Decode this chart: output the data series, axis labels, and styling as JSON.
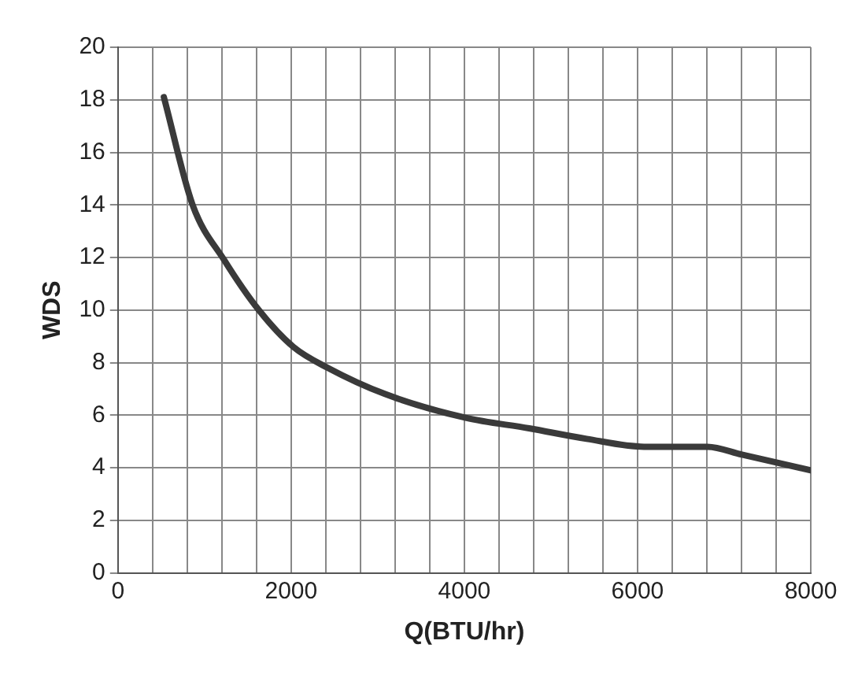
{
  "chart_data": {
    "type": "line",
    "xlabel": "Q(BTU/hr)",
    "ylabel": "WDS",
    "x": [
      531,
      863,
      1228,
      1627,
      2025,
      2424,
      3088,
      4017,
      4748,
      5412,
      6076,
      6807,
      7205,
      8000
    ],
    "series": [
      {
        "color": "#3a3a3a",
        "values": [
          18.1,
          14.0,
          11.9,
          10.0,
          8.6,
          7.8,
          6.8,
          5.9,
          5.5,
          5.1,
          4.8,
          4.8,
          4.5,
          3.9
        ]
      }
    ],
    "xlim": [
      0,
      8000
    ],
    "xticks": [
      0,
      {
        "value": 400,
        "label": null
      },
      {
        "value": 800,
        "label": null
      },
      {
        "value": 1200,
        "label": null
      },
      {
        "value": 1600,
        "label": null
      },
      2000,
      {
        "value": 2400,
        "label": null
      },
      {
        "value": 2800,
        "label": null
      },
      {
        "value": 3200,
        "label": null
      },
      {
        "value": 3600,
        "label": null
      },
      4000,
      {
        "value": 4400,
        "label": null
      },
      {
        "value": 4800,
        "label": null
      },
      {
        "value": 5200,
        "label": null
      },
      {
        "value": 5600,
        "label": null
      },
      6000,
      {
        "value": 6400,
        "label": null
      },
      {
        "value": 6800,
        "label": null
      },
      {
        "value": 7200,
        "label": null
      },
      {
        "value": 7600,
        "label": null
      },
      8000
    ],
    "ylim": [
      0,
      20
    ],
    "yticks": [
      0,
      2,
      4,
      6,
      8,
      10,
      12,
      14,
      16,
      18,
      20
    ],
    "grid": true,
    "legend": false,
    "marker": "none",
    "line_style": "solid"
  }
}
